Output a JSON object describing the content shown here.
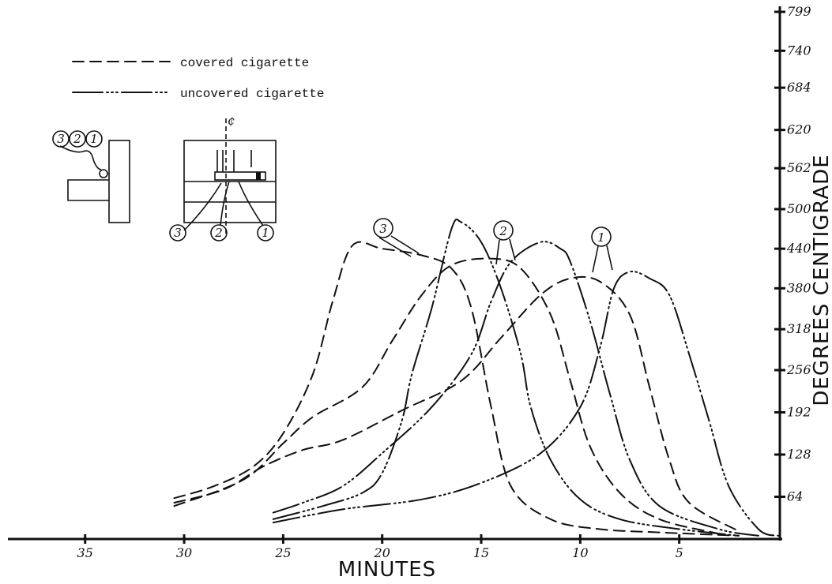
{
  "chart_data": {
    "type": "line",
    "xlabel": "MINUTES",
    "ylabel": "DEGREES CENTIGRADE",
    "x_ticks": [
      "35",
      "30",
      "25",
      "20",
      "15",
      "10",
      "5"
    ],
    "x_tick_values": [
      35,
      30,
      25,
      20,
      15,
      10,
      5
    ],
    "xlim": [
      38.5,
      0
    ],
    "x_direction": "decreasing",
    "y_ticks": [
      "64",
      "128",
      "192",
      "256",
      "318",
      "380",
      "440",
      "500",
      "562",
      "620",
      "684",
      "740",
      "799"
    ],
    "y_tick_values": [
      64,
      128,
      192,
      256,
      318,
      380,
      440,
      500,
      562,
      620,
      684,
      740,
      799
    ],
    "ylim": [
      0,
      799
    ],
    "legend": [
      {
        "label": "covered cigarette",
        "style": "dashed"
      },
      {
        "label": "uncovered cigarette",
        "style": "dash-dot-dot"
      }
    ],
    "legend_position": "top-left",
    "series": [
      {
        "name": "covered cigarette",
        "label": "3",
        "style": "dashed",
        "points": [
          [
            30.5,
            62
          ],
          [
            28.5,
            80
          ],
          [
            26.5,
            110
          ],
          [
            25,
            160
          ],
          [
            23.5,
            250
          ],
          [
            22.5,
            360
          ],
          [
            21.5,
            445
          ],
          [
            20,
            440
          ],
          [
            18,
            430
          ],
          [
            16.5,
            410
          ],
          [
            15.5,
            350
          ],
          [
            14.5,
            200
          ],
          [
            13.5,
            80
          ],
          [
            11.5,
            30
          ],
          [
            9,
            15
          ],
          [
            6,
            10
          ],
          [
            2,
            5
          ]
        ]
      },
      {
        "name": "covered cigarette",
        "label": "2",
        "style": "dashed",
        "points": [
          [
            30.5,
            50
          ],
          [
            27,
            90
          ],
          [
            25,
            145
          ],
          [
            23.5,
            185
          ],
          [
            21,
            230
          ],
          [
            19.5,
            300
          ],
          [
            18,
            370
          ],
          [
            16.5,
            415
          ],
          [
            14.5,
            425
          ],
          [
            13,
            410
          ],
          [
            11.5,
            340
          ],
          [
            10.5,
            240
          ],
          [
            9.5,
            140
          ],
          [
            8,
            70
          ],
          [
            6,
            30
          ],
          [
            3,
            8
          ]
        ]
      },
      {
        "name": "covered cigarette",
        "label": "1",
        "style": "dashed",
        "points": [
          [
            30.5,
            55
          ],
          [
            28,
            75
          ],
          [
            26,
            110
          ],
          [
            24,
            135
          ],
          [
            22,
            150
          ],
          [
            19,
            195
          ],
          [
            16,
            240
          ],
          [
            14,
            305
          ],
          [
            12,
            370
          ],
          [
            10.5,
            395
          ],
          [
            9,
            390
          ],
          [
            7.5,
            340
          ],
          [
            6.5,
            230
          ],
          [
            5.5,
            120
          ],
          [
            4.5,
            55
          ],
          [
            2,
            12
          ]
        ]
      },
      {
        "name": "uncovered cigarette",
        "label": "3",
        "style": "dash-dot-dot",
        "points": [
          [
            25.5,
            30
          ],
          [
            23,
            50
          ],
          [
            21,
            70
          ],
          [
            20,
            100
          ],
          [
            19,
            180
          ],
          [
            18.5,
            250
          ],
          [
            17.5,
            350
          ],
          [
            16.5,
            470
          ],
          [
            16,
            480
          ],
          [
            15,
            450
          ],
          [
            14,
            380
          ],
          [
            13,
            280
          ],
          [
            12.5,
            200
          ],
          [
            11.5,
            120
          ],
          [
            10,
            60
          ],
          [
            8,
            30
          ],
          [
            5,
            15
          ],
          [
            2,
            5
          ]
        ]
      },
      {
        "name": "uncovered cigarette",
        "label": "2",
        "style": "dash-dot-dot",
        "points": [
          [
            25.5,
            40
          ],
          [
            24,
            55
          ],
          [
            22,
            80
          ],
          [
            20,
            130
          ],
          [
            17.5,
            200
          ],
          [
            15.5,
            280
          ],
          [
            14.5,
            360
          ],
          [
            13.5,
            420
          ],
          [
            12,
            450
          ],
          [
            11,
            440
          ],
          [
            10.5,
            420
          ],
          [
            9.5,
            330
          ],
          [
            8.5,
            220
          ],
          [
            7.5,
            120
          ],
          [
            6,
            50
          ],
          [
            3,
            15
          ],
          [
            1,
            5
          ]
        ]
      },
      {
        "name": "uncovered cigarette",
        "label": "1",
        "style": "dash-dot-dot",
        "points": [
          [
            25.5,
            25
          ],
          [
            22,
            45
          ],
          [
            18,
            60
          ],
          [
            15,
            85
          ],
          [
            12,
            130
          ],
          [
            10,
            200
          ],
          [
            9,
            290
          ],
          [
            8.3,
            380
          ],
          [
            7.5,
            405
          ],
          [
            6.5,
            395
          ],
          [
            5.5,
            370
          ],
          [
            4.5,
            280
          ],
          [
            3.5,
            180
          ],
          [
            2.5,
            80
          ],
          [
            1,
            15
          ],
          [
            0,
            5
          ]
        ]
      }
    ],
    "curve_markers": [
      "3",
      "2",
      "1"
    ],
    "inset_diagram_labels": [
      "3",
      "2",
      "1",
      "3",
      "2",
      "1",
      "¢"
    ],
    "grid": false
  }
}
